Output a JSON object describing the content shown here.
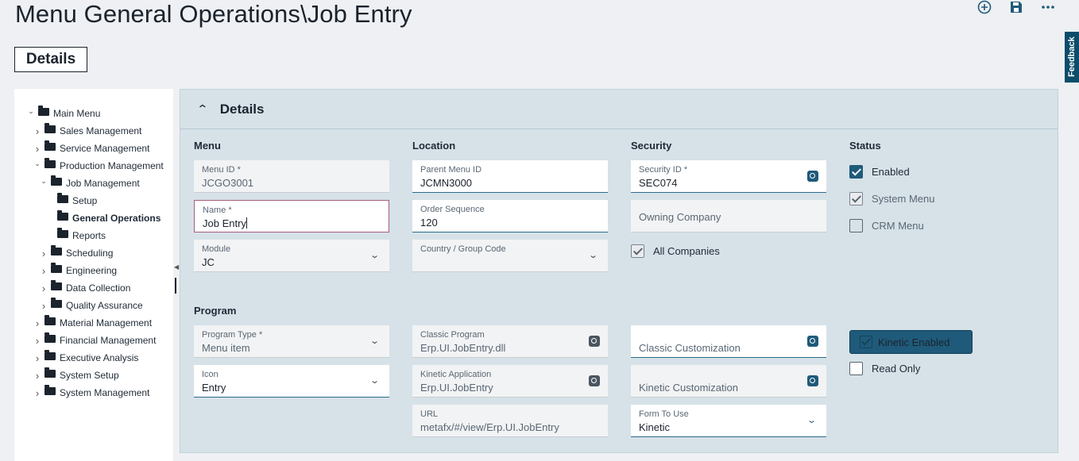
{
  "page": {
    "title": "Menu General Operations\\Job Entry",
    "details_button": "Details",
    "feedback": "Feedback"
  },
  "top_actions": [
    {
      "icon": "add-circle-icon"
    },
    {
      "icon": "save-icon"
    },
    {
      "icon": "more-icon"
    }
  ],
  "tree": {
    "items": [
      {
        "label": "Main Menu",
        "level": 0,
        "expanded": true
      },
      {
        "label": "Sales Management",
        "level": 1,
        "expanded": false
      },
      {
        "label": "Service Management",
        "level": 1,
        "expanded": false
      },
      {
        "label": "Production Management",
        "level": 1,
        "expanded": true
      },
      {
        "label": "Job Management",
        "level": 2,
        "expanded": true
      },
      {
        "label": "Setup",
        "level": 3
      },
      {
        "label": "General Operations",
        "level": 3,
        "selected": true
      },
      {
        "label": "Reports",
        "level": 3
      },
      {
        "label": "Scheduling",
        "level": 2,
        "expanded": false
      },
      {
        "label": "Engineering",
        "level": 2,
        "expanded": false
      },
      {
        "label": "Data Collection",
        "level": 2,
        "expanded": false
      },
      {
        "label": "Quality Assurance",
        "level": 2,
        "expanded": false
      },
      {
        "label": "Material Management",
        "level": 1,
        "expanded": false
      },
      {
        "label": "Financial Management",
        "level": 1,
        "expanded": false
      },
      {
        "label": "Executive Analysis",
        "level": 1,
        "expanded": false
      },
      {
        "label": "System Setup",
        "level": 1,
        "expanded": false
      },
      {
        "label": "System Management",
        "level": 1,
        "expanded": false
      }
    ]
  },
  "panel": {
    "title": "Details",
    "sections": {
      "menu": "Menu",
      "location": "Location",
      "security": "Security",
      "status": "Status",
      "program": "Program"
    },
    "menu_id": {
      "label": "Menu ID *",
      "value": "JCGO3001"
    },
    "name": {
      "label": "Name *",
      "value": "Job Entry"
    },
    "module": {
      "label": "Module",
      "value": "JC"
    },
    "parent_menu_id": {
      "label": "Parent Menu ID",
      "value": "JCMN3000"
    },
    "order_sequence": {
      "label": "Order Sequence",
      "value": "120"
    },
    "country_group_code": {
      "label": "Country / Group Code",
      "value": ""
    },
    "security_id": {
      "label": "Security ID *",
      "value": "SEC074"
    },
    "owning_company": {
      "placeholder": "Owning Company"
    },
    "all_companies": {
      "label": "All Companies",
      "checked": true
    },
    "enabled": {
      "label": "Enabled",
      "checked": true
    },
    "system_menu": {
      "label": "System Menu",
      "checked": true
    },
    "crm_menu": {
      "label": "CRM Menu",
      "checked": false
    },
    "program_type": {
      "label": "Program Type *",
      "value": "Menu item"
    },
    "icon": {
      "label": "Icon",
      "value": "Entry"
    },
    "classic_program": {
      "label": "Classic Program",
      "value": "Erp.UI.JobEntry.dll"
    },
    "kinetic_application": {
      "label": "Kinetic Application",
      "value": "Erp.UI.JobEntry"
    },
    "url": {
      "label": "URL",
      "value": "metafx/#/view/Erp.UI.JobEntry"
    },
    "classic_customization": {
      "placeholder": "Classic Customization"
    },
    "kinetic_customization": {
      "placeholder": "Kinetic Customization"
    },
    "form_to_use": {
      "label": "Form To Use",
      "value": "Kinetic"
    },
    "kinetic_enabled": {
      "label": "Kinetic Enabled",
      "checked": true
    },
    "read_only": {
      "label": "Read Only",
      "checked": false
    }
  },
  "colors": {
    "accent": "#1f5a7a",
    "panel_bg": "#d6e2e8",
    "page_bg": "#eef0f3",
    "required_border": "#a85c7f"
  }
}
